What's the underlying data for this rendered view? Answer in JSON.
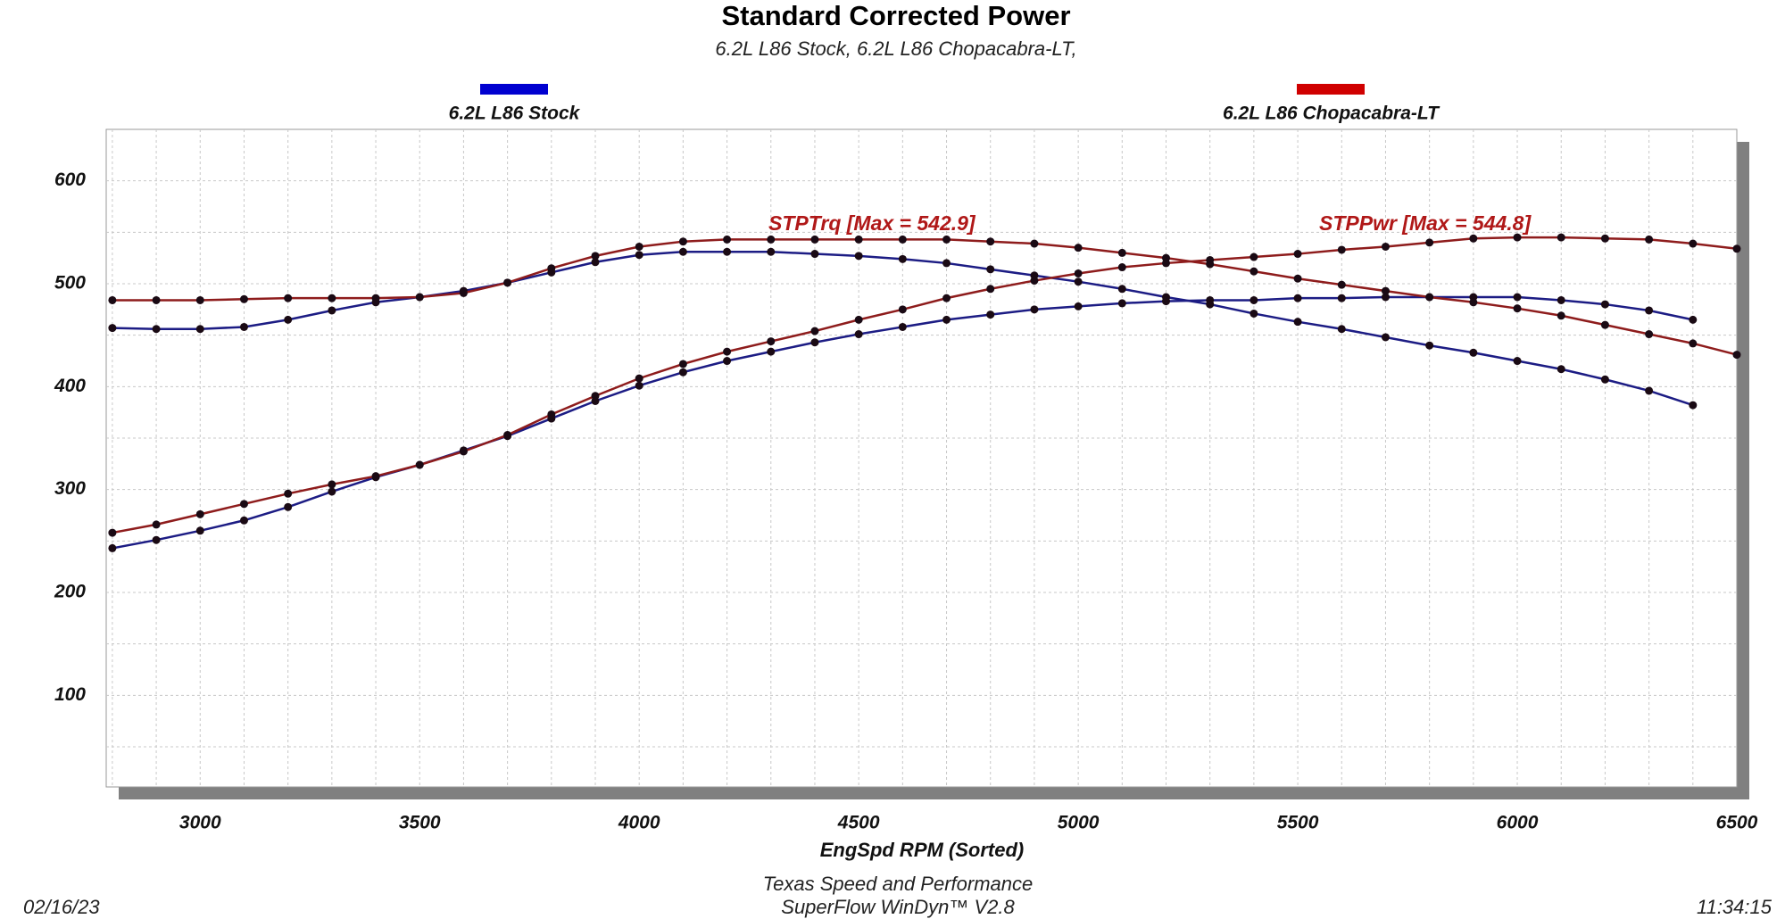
{
  "chart_data": {
    "type": "line",
    "title": "Standard Corrected Power",
    "subtitle": "6.2L L86 Stock, 6.2L L86 Chopacabra-LT,",
    "x_label": "EngSpd  RPM  (Sorted)",
    "annotations": [
      "STPTrq [Max = 542.9]",
      "STPPwr [Max = 544.8]"
    ],
    "footer": [
      "Texas Speed and Performance",
      "SuperFlow WinDyn™ V2.8"
    ],
    "date": "02/16/23",
    "time": "11:34:15",
    "x": [
      2800,
      2900,
      3000,
      3100,
      3200,
      3300,
      3400,
      3500,
      3600,
      3700,
      3800,
      3900,
      4000,
      4100,
      4200,
      4300,
      4400,
      4500,
      4600,
      4700,
      4800,
      4900,
      5000,
      5100,
      5200,
      5300,
      5400,
      5500,
      5600,
      5700,
      5800,
      5900,
      6000,
      6100,
      6200,
      6300,
      6400,
      6500
    ],
    "series": [
      {
        "name": "6.2L L86 Stock",
        "color": "#0000d0",
        "line_color": "#1c1c84",
        "torque": [
          457,
          456,
          456,
          458,
          465,
          474,
          482,
          487,
          493,
          501,
          511,
          521,
          528,
          531,
          531,
          531,
          529,
          527,
          524,
          520,
          514,
          508,
          502,
          495,
          487,
          480,
          471,
          463,
          456,
          448,
          440,
          433,
          425,
          417,
          407,
          396,
          382,
          null
        ],
        "power": [
          243,
          251,
          260,
          270,
          283,
          298,
          312,
          324,
          338,
          352,
          369,
          386,
          401,
          414,
          425,
          434,
          443,
          451,
          458,
          465,
          470,
          475,
          478,
          481,
          483,
          484,
          484,
          486,
          486,
          487,
          487,
          487,
          487,
          484,
          480,
          474,
          465,
          null
        ]
      },
      {
        "name": "6.2L L86 Chopacabra-LT",
        "color": "#d00000",
        "line_color": "#8e1c1c",
        "torque": [
          484,
          484,
          484,
          485,
          486,
          486,
          486,
          487,
          491,
          501,
          515,
          527,
          536,
          541,
          543,
          543,
          543,
          543,
          543,
          543,
          541,
          539,
          535,
          530,
          525,
          519,
          512,
          505,
          499,
          493,
          487,
          482,
          476,
          469,
          460,
          451,
          442,
          431
        ],
        "power": [
          258,
          266,
          276,
          286,
          296,
          305,
          313,
          324,
          337,
          353,
          373,
          391,
          408,
          422,
          434,
          444,
          454,
          465,
          475,
          486,
          495,
          503,
          510,
          516,
          520,
          523,
          526,
          529,
          533,
          536,
          540,
          544,
          545,
          545,
          544,
          543,
          539,
          534
        ]
      }
    ],
    "xlim": [
      2786,
      6500
    ],
    "xticks": [
      3000,
      3500,
      4000,
      4500,
      5000,
      5500,
      6000,
      6500
    ],
    "xgrid": [
      2800,
      2900,
      3000,
      3100,
      3200,
      3300,
      3400,
      3500,
      3600,
      3700,
      3800,
      3900,
      4000,
      4100,
      4200,
      4300,
      4400,
      4500,
      4600,
      4700,
      4800,
      4900,
      5000,
      5100,
      5200,
      5300,
      5400,
      5500,
      5600,
      5700,
      5800,
      5900,
      6000,
      6100,
      6200,
      6300,
      6400
    ],
    "ylim": [
      11,
      650
    ],
    "yticks": [
      100,
      200,
      300,
      400,
      500,
      600
    ],
    "ygrid": [
      50,
      100,
      150,
      200,
      250,
      300,
      350,
      400,
      450,
      500,
      550,
      600
    ],
    "grid": true
  }
}
